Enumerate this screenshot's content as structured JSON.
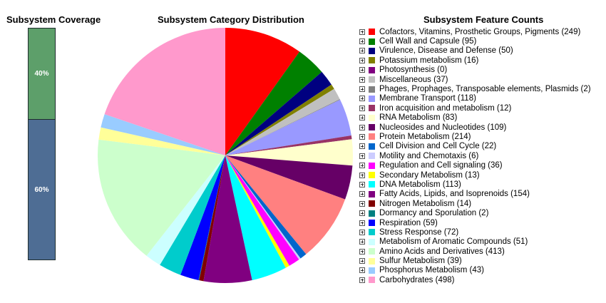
{
  "coverage": {
    "title": "Subsystem Coverage",
    "segments": [
      {
        "label": "40%",
        "color": "#5d9f6a",
        "fraction": 0.4
      },
      {
        "label": "60%",
        "color": "#4e6d94",
        "fraction": 0.6
      }
    ]
  },
  "pie_title": "Subsystem Category Distribution",
  "legend_title": "Subsystem Feature Counts",
  "expander_icon": "expand-plus-icon",
  "chart_data": {
    "type": "pie",
    "title": "Subsystem Category Distribution",
    "legend_placement": "right",
    "slices": [
      {
        "name": "Cofactors, Vitamins, Prosthetic Groups, Pigments",
        "value": 249,
        "color": "#ff0000",
        "label": "Cofactors, Vitamins, Prosthetic Groups, Pigments (249)"
      },
      {
        "name": "Cell Wall and Capsule",
        "value": 95,
        "color": "#008000",
        "label": "Cell Wall and Capsule (95)"
      },
      {
        "name": "Virulence, Disease and Defense",
        "value": 50,
        "color": "#000080",
        "label": "Virulence, Disease and Defense (50)"
      },
      {
        "name": "Potassium metabolism",
        "value": 16,
        "color": "#808000",
        "label": "Potassium metabolism (16)"
      },
      {
        "name": "Photosynthesis",
        "value": 0,
        "color": "#800080",
        "label": "Photosynthesis (0)"
      },
      {
        "name": "Miscellaneous",
        "value": 37,
        "color": "#c0c0c0",
        "label": "Miscellaneous (37)"
      },
      {
        "name": "Phages, Prophages, Transposable elements, Plasmids",
        "value": 2,
        "color": "#808080",
        "label": "Phages, Prophages, Transposable elements, Plasmids (2)"
      },
      {
        "name": "Membrane Transport",
        "value": 118,
        "color": "#9999ff",
        "label": "Membrane Transport (118)"
      },
      {
        "name": "Iron acquisition and metabolism",
        "value": 12,
        "color": "#993366",
        "label": "Iron acquisition and metabolism (12)"
      },
      {
        "name": "RNA Metabolism",
        "value": 83,
        "color": "#ffffcc",
        "label": "RNA Metabolism (83)"
      },
      {
        "name": "Nucleosides and Nucleotides",
        "value": 109,
        "color": "#660066",
        "label": "Nucleosides and Nucleotides (109)"
      },
      {
        "name": "Protein Metabolism",
        "value": 214,
        "color": "#ff8080",
        "label": "Protein Metabolism (214)"
      },
      {
        "name": "Cell Division and Cell Cycle",
        "value": 22,
        "color": "#0066cc",
        "label": "Cell Division and Cell Cycle (22)"
      },
      {
        "name": "Motility and Chemotaxis",
        "value": 6,
        "color": "#ccccff",
        "label": "Motility and Chemotaxis (6)"
      },
      {
        "name": "Regulation and Cell signaling",
        "value": 36,
        "color": "#ff00ff",
        "label": "Regulation and Cell signaling (36)"
      },
      {
        "name": "Secondary Metabolism",
        "value": 13,
        "color": "#ffff00",
        "label": "Secondary Metabolism (13)"
      },
      {
        "name": "DNA Metabolism",
        "value": 113,
        "color": "#00ffff",
        "label": "DNA Metabolism (113)"
      },
      {
        "name": "Fatty Acids, Lipids, and Isoprenoids",
        "value": 154,
        "color": "#800080",
        "label": "Fatty Acids, Lipids, and Isoprenoids (154)"
      },
      {
        "name": "Nitrogen Metabolism",
        "value": 14,
        "color": "#800000",
        "label": "Nitrogen Metabolism (14)"
      },
      {
        "name": "Dormancy and Sporulation",
        "value": 2,
        "color": "#008080",
        "label": "Dormancy and Sporulation (2)"
      },
      {
        "name": "Respiration",
        "value": 59,
        "color": "#0000ff",
        "label": "Respiration (59)"
      },
      {
        "name": "Stress Response",
        "value": 72,
        "color": "#00cccc",
        "label": "Stress Response (72)"
      },
      {
        "name": "Metabolism of Aromatic Compounds",
        "value": 51,
        "color": "#ccffff",
        "label": "Metabolism of Aromatic Compounds (51)"
      },
      {
        "name": "Amino Acids and Derivatives",
        "value": 413,
        "color": "#ccffcc",
        "label": "Amino Acids and Derivatives (413)"
      },
      {
        "name": "Sulfur Metabolism",
        "value": 39,
        "color": "#ffff99",
        "label": "Sulfur Metabolism (39)"
      },
      {
        "name": "Phosphorus Metabolism",
        "value": 43,
        "color": "#99ccff",
        "label": "Phosphorus Metabolism (43)"
      },
      {
        "name": "Carbohydrates",
        "value": 498,
        "color": "#ff99cc",
        "label": "Carbohydrates (498)"
      }
    ]
  }
}
